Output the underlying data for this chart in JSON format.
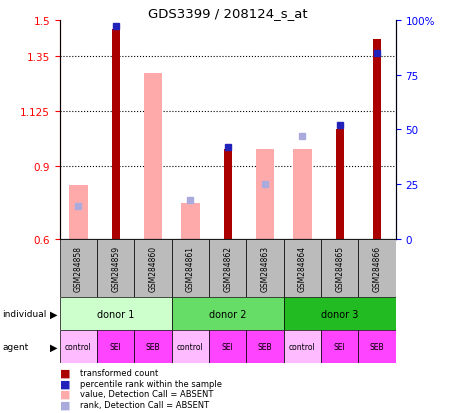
{
  "title": "GDS3399 / 208124_s_at",
  "samples": [
    "GSM284858",
    "GSM284859",
    "GSM284860",
    "GSM284861",
    "GSM284862",
    "GSM284863",
    "GSM284864",
    "GSM284865",
    "GSM284866"
  ],
  "red_values": [
    null,
    1.46,
    null,
    null,
    0.97,
    null,
    null,
    1.05,
    1.42
  ],
  "pink_values": [
    0.82,
    null,
    1.28,
    0.75,
    null,
    0.97,
    0.97,
    null,
    null
  ],
  "blue_pct": [
    null,
    97,
    null,
    null,
    42,
    null,
    null,
    52,
    85
  ],
  "lblue_pct": [
    15,
    null,
    null,
    18,
    null,
    25,
    47,
    null,
    null
  ],
  "ylim_left": [
    0.6,
    1.5
  ],
  "ylim_right": [
    0,
    100
  ],
  "yticks_left": [
    0.6,
    0.9,
    1.125,
    1.35,
    1.5
  ],
  "ytick_labels_left": [
    "0.6",
    "0.9",
    "1.125",
    "1.35",
    "1.5"
  ],
  "yticks_right": [
    0,
    25,
    50,
    75,
    100
  ],
  "ytick_labels_right": [
    "0",
    "25",
    "50",
    "75",
    "100%"
  ],
  "donors": [
    {
      "label": "donor 1",
      "start": 0,
      "end": 3
    },
    {
      "label": "donor 2",
      "start": 3,
      "end": 6
    },
    {
      "label": "donor 3",
      "start": 6,
      "end": 9
    }
  ],
  "donor_colors": [
    "#ccffcc",
    "#66dd66",
    "#22bb22"
  ],
  "agents": [
    "control",
    "SEI",
    "SEB",
    "control",
    "SEI",
    "SEB",
    "control",
    "SEI",
    "SEB"
  ],
  "agent_color_control": "#ffbbff",
  "agent_color_other": "#ff44ff",
  "red_bar_width": 0.22,
  "pink_bar_width": 0.5,
  "red_color": "#aa0000",
  "pink_color": "#ffaaaa",
  "blue_color": "#2222bb",
  "lblue_color": "#aaaadd",
  "bg_color": "#bbbbbb",
  "plot_bg": "white",
  "grid_yticks": [
    0.9,
    1.125,
    1.35
  ]
}
